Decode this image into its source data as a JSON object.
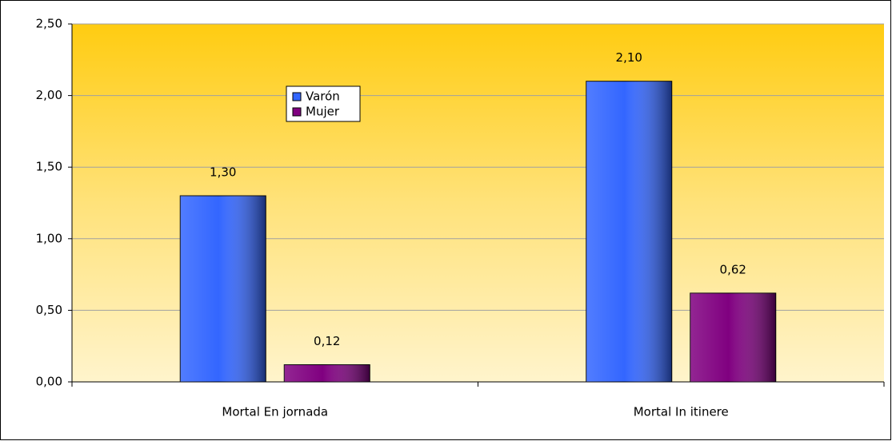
{
  "chart_data": {
    "type": "bar",
    "categories": [
      "Mortal En jornada",
      "Mortal In itinere"
    ],
    "series": [
      {
        "name": "Varón",
        "color": "#3366ff",
        "values": [
          1.3,
          2.1
        ],
        "value_labels": [
          "1,30",
          "2,10"
        ]
      },
      {
        "name": "Mujer",
        "color": "#800080",
        "values": [
          0.12,
          0.62
        ],
        "value_labels": [
          "0,12",
          "0,62"
        ]
      }
    ],
    "ylim": [
      0,
      2.5
    ],
    "yticks": [
      {
        "value": 0,
        "label": "0,00"
      },
      {
        "value": 0.5,
        "label": "0,50"
      },
      {
        "value": 1,
        "label": "1,00"
      },
      {
        "value": 1.5,
        "label": "1,50"
      },
      {
        "value": 2,
        "label": "2,00"
      },
      {
        "value": 2.5,
        "label": "2,50"
      }
    ],
    "grid": true,
    "legend": "top-left"
  }
}
